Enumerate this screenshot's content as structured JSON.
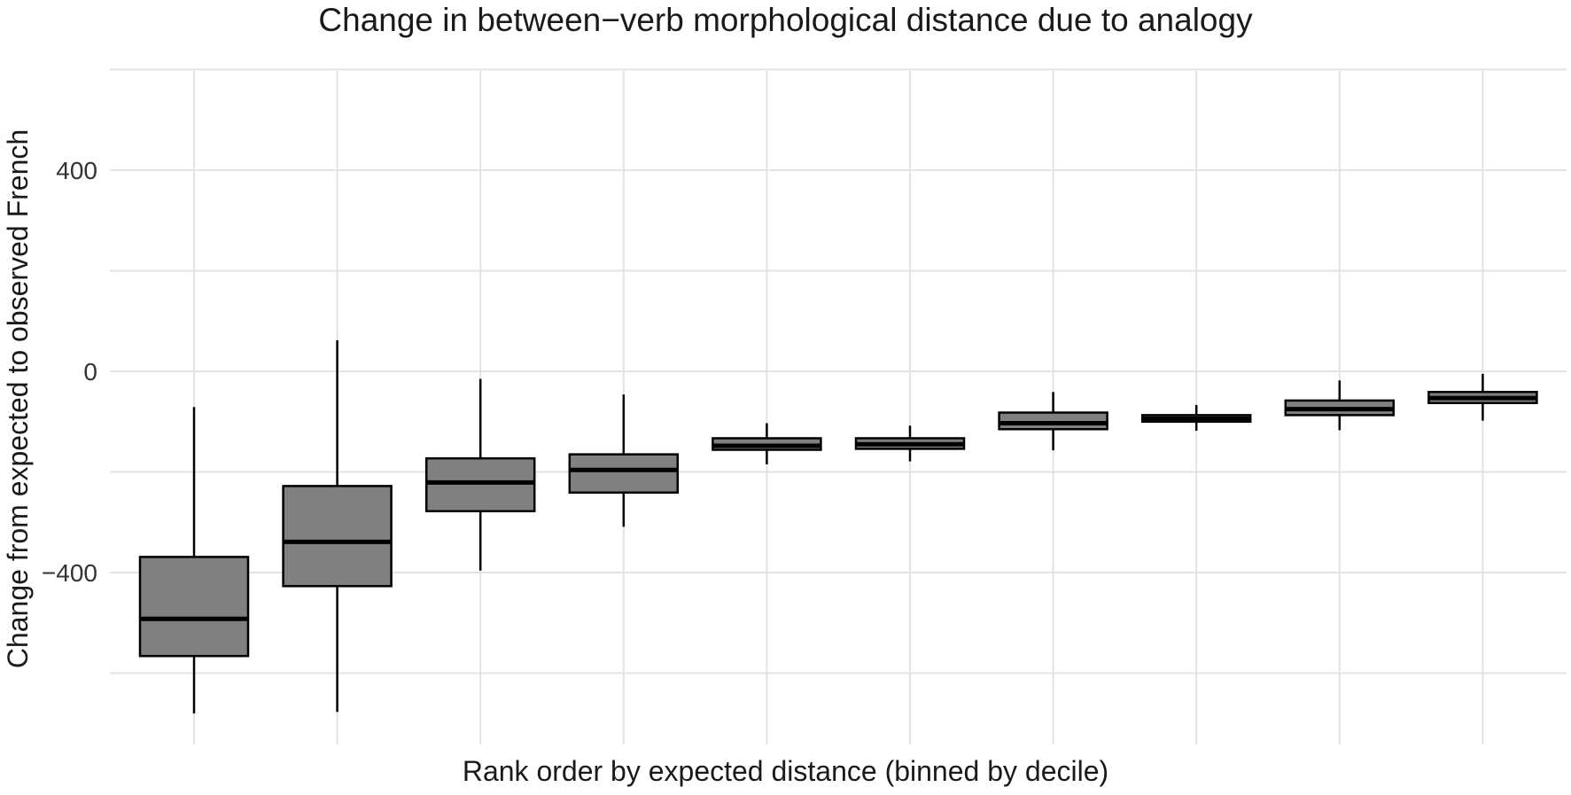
{
  "chart_data": {
    "type": "box",
    "title": "Change in between−verb morphological distance due to analogy",
    "xlabel": "Rank order by expected distance (binned by decile)",
    "ylabel": "Change from expected to observed French",
    "ylim": [
      -745,
      605
    ],
    "yticks": [
      400,
      0,
      -400
    ],
    "ytick_labels": [
      "400",
      "0",
      "−400"
    ],
    "grid": true,
    "fill_color": "#808080",
    "stroke_color": "#000000",
    "grid_color": "#e3e3e3",
    "boxes": [
      {
        "whisker_low": -680,
        "q1": -566,
        "median": -492,
        "q3": -369,
        "whisker_high": -71
      },
      {
        "whisker_low": -677,
        "q1": -427,
        "median": -339,
        "q3": -228,
        "whisker_high": 62
      },
      {
        "whisker_low": -396,
        "q1": -278,
        "median": -221,
        "q3": -173,
        "whisker_high": -15
      },
      {
        "whisker_low": -309,
        "q1": -241,
        "median": -196,
        "q3": -165,
        "whisker_high": -46
      },
      {
        "whisker_low": -185,
        "q1": -156,
        "median": -148,
        "q3": -133,
        "whisker_high": -103
      },
      {
        "whisker_low": -179,
        "q1": -154,
        "median": -145,
        "q3": -133,
        "whisker_high": -108
      },
      {
        "whisker_low": -157,
        "q1": -115,
        "median": -103,
        "q3": -82,
        "whisker_high": -41
      },
      {
        "whisker_low": -118,
        "q1": -100,
        "median": -94,
        "q3": -87,
        "whisker_high": -67
      },
      {
        "whisker_low": -117,
        "q1": -87,
        "median": -75,
        "q3": -58,
        "whisker_high": -18
      },
      {
        "whisker_low": -98,
        "q1": -63,
        "median": -53,
        "q3": -41,
        "whisker_high": -5
      }
    ]
  }
}
